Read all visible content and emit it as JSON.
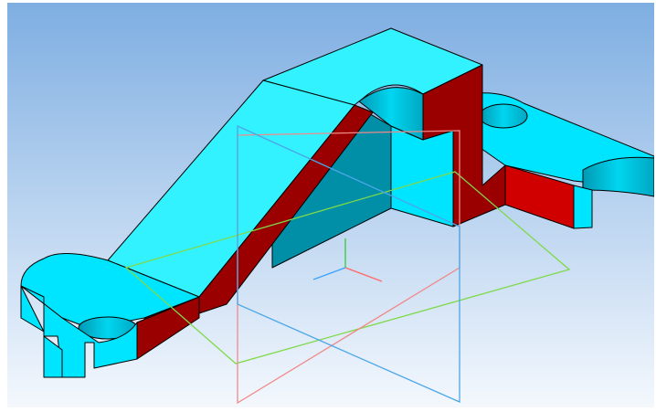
{
  "viewport": {
    "kind": "3d-model-viewport",
    "background_top": "#7eaee2",
    "background_bottom": "#f4f8fd"
  },
  "model": {
    "face_cyan": "#00e5ff",
    "face_cyan_light": "#33f2ff",
    "face_red_dark": "#9a0000",
    "face_red": "#d00000",
    "shadow_teal": "#008fa6",
    "edge": "#000000"
  },
  "planes": {
    "xy_color": "#7fd94a",
    "zx_color": "#f08a8a",
    "zy_color": "#4aa6e8"
  },
  "triad": {
    "x_color": "#ff6a6a",
    "y_color": "#3da2ff",
    "z_color": "#33cc33"
  }
}
